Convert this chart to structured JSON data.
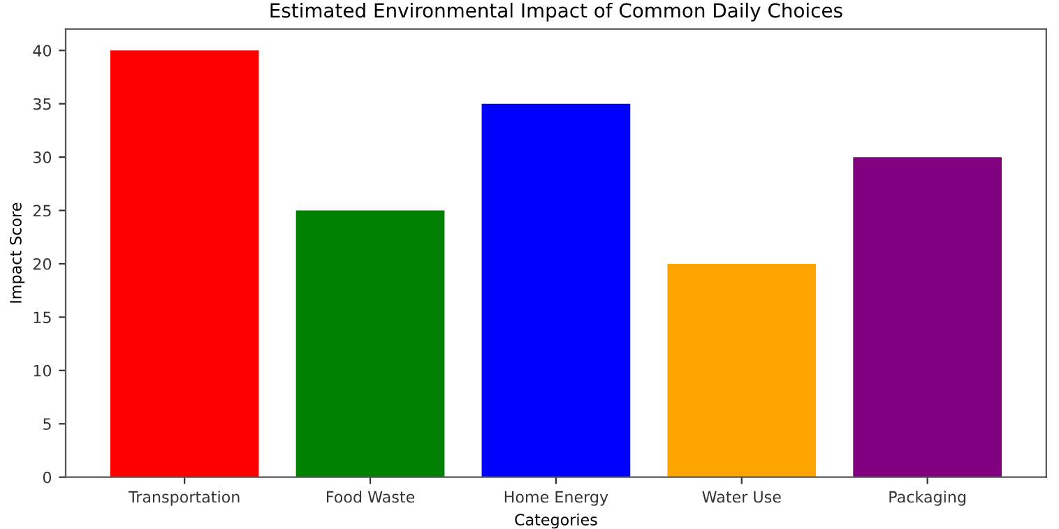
{
  "chart_data": {
    "type": "bar",
    "title": "Estimated Environmental Impact of Common Daily Choices",
    "xlabel": "Categories",
    "ylabel": "Impact Score",
    "categories": [
      "Transportation",
      "Food Waste",
      "Home Energy",
      "Water Use",
      "Packaging"
    ],
    "values": [
      40,
      25,
      35,
      20,
      30
    ],
    "colors": [
      "#ff0000",
      "#008000",
      "#0000ff",
      "#ffa500",
      "#800080"
    ],
    "ylim": [
      0,
      42
    ],
    "yticks": [
      0,
      5,
      10,
      15,
      20,
      25,
      30,
      35,
      40
    ],
    "grid": false
  }
}
